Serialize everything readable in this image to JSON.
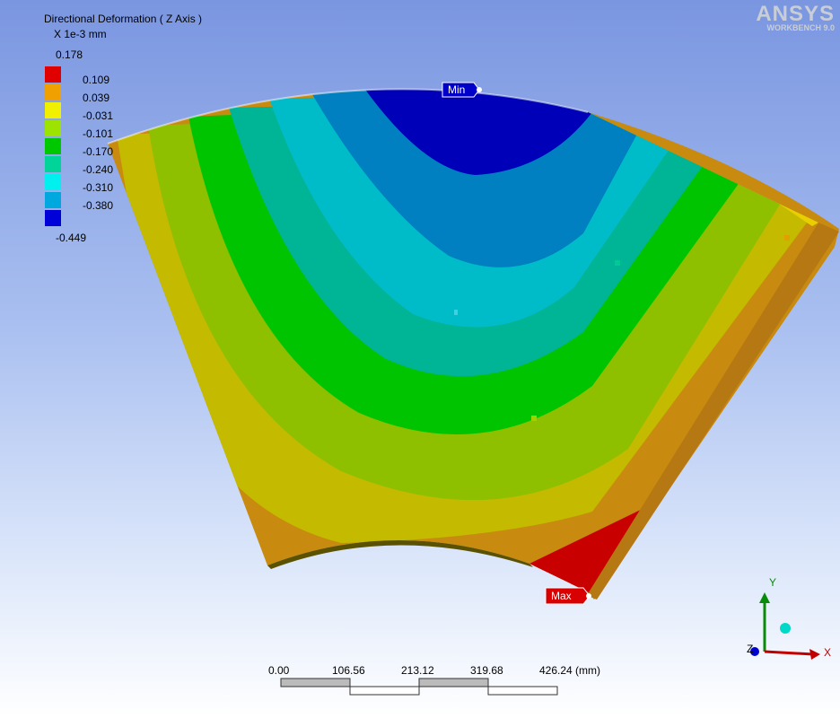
{
  "legend": {
    "title": "Directional Deformation ( Z Axis )",
    "units": "X 1e-3 mm",
    "labels": [
      "0.178",
      "0.109",
      "0.039",
      "-0.031",
      "-0.101",
      "-0.170",
      "-0.240",
      "-0.310",
      "-0.380",
      "-0.449"
    ],
    "colors": [
      "#e10000",
      "#f0a000",
      "#f0f000",
      "#9ce400",
      "#00c800",
      "#00d498",
      "#00f0f0",
      "#00a8e0",
      "#0000d8"
    ]
  },
  "brand": {
    "name": "ANSYS",
    "subtitle": "WORKBENCH 9.0"
  },
  "probes": {
    "min_label": "Min",
    "max_label": "Max"
  },
  "scale_bar": {
    "ticks": [
      "0.00",
      "106.56",
      "213.12",
      "319.68",
      "426.24 (mm)"
    ]
  },
  "triad": {
    "x_label": "X",
    "y_label": "Y",
    "z_label": "Z"
  },
  "colors": {
    "model_orange": "#c98a10",
    "model_yellow": "#c0b800",
    "model_yellowgreen": "#8ec000",
    "model_green": "#00c000",
    "model_teal": "#00b496",
    "model_cyan": "#00bcc8",
    "model_steel": "#0080c0",
    "model_blue": "#0000b8",
    "model_red": "#c80000",
    "side_face": "#b5740e"
  }
}
